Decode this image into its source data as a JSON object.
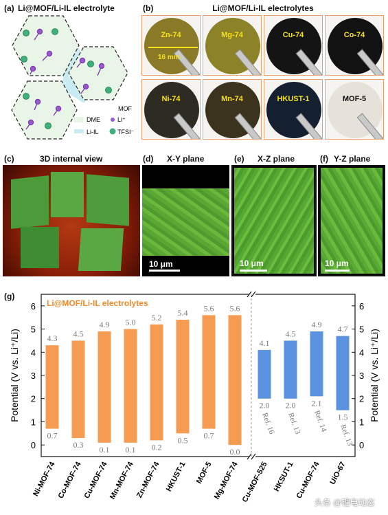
{
  "panel_a": {
    "label": "(a)",
    "title": "Li@MOF/Li-IL electrolyte",
    "legend": {
      "dme": "DME",
      "li": "Li⁺",
      "mof": "MOF",
      "li_il": "Li-IL",
      "tfsi": "TFSI⁻"
    }
  },
  "panel_b": {
    "label": "(b)",
    "title": "Li@MOF/Li-IL electrolytes",
    "size_label": "16 mm",
    "discs": [
      {
        "name": "Zn-74",
        "color": "#8a7a28"
      },
      {
        "name": "Mg-74",
        "color": "#8c8228"
      },
      {
        "name": "Cu-74",
        "color": "#141414"
      },
      {
        "name": "Co-74",
        "color": "#121212"
      },
      {
        "name": "Ni-74",
        "color": "#2e2b22"
      },
      {
        "name": "Mn-74",
        "color": "#3c331e"
      },
      {
        "name": "HKUST-1",
        "color": "#142030"
      },
      {
        "name": "MOF-5",
        "color": "#e6e2da"
      }
    ]
  },
  "panel_c": {
    "label": "(c)",
    "title": "3D internal view"
  },
  "panel_d": {
    "label": "(d)",
    "title": "X-Y plane",
    "scale": "10 μm"
  },
  "panel_e": {
    "label": "(e)",
    "title": "X-Z plane",
    "scale": "10 μm"
  },
  "panel_f": {
    "label": "(f)",
    "title": "Y-Z plane",
    "scale": "10 μm"
  },
  "panel_g": {
    "label": "(g)",
    "legend_text": "Li@MOF/Li-IL electrolytes"
  },
  "colors": {
    "orange": "#f59b52",
    "blue": "#5b93e0",
    "label_orange": "#f08a2a",
    "value_gray": "#7a7a7a"
  },
  "chart_data": {
    "type": "bar",
    "ylabel": "Potential (V vs. Li⁺/Li)",
    "ylim": [
      -0.5,
      6.5
    ],
    "yticks": [
      0,
      1,
      2,
      3,
      4,
      5,
      6
    ],
    "series": [
      {
        "name": "Li@MOF/Li-IL electrolytes",
        "color": "#f59b52",
        "categories": [
          "Ni-MOF-74",
          "Co-MOF-74",
          "Cu-MOF-74",
          "Mn-MOF-74",
          "Zn-MOF-74",
          "HKUST-1",
          "MOF-5",
          "Mg-MOF-74"
        ],
        "low": [
          0.7,
          0.3,
          0.1,
          0.1,
          0.2,
          0.5,
          0.7,
          0.0
        ],
        "high": [
          4.3,
          4.5,
          4.9,
          5.0,
          5.2,
          5.4,
          5.6,
          5.6
        ],
        "low_labels": [
          "0.7",
          "0.3",
          "0.1",
          "0.1",
          "0.2",
          "0.5",
          "0.7",
          "0.0"
        ],
        "high_labels": [
          "4.3",
          "4.5",
          "4.9",
          "5.0",
          "5.2",
          "5.4",
          "5.6",
          "5.6"
        ]
      },
      {
        "name": "",
        "color": "#5b93e0",
        "categories": [
          "Cu-MOF-525",
          "HKSUT-1",
          "Cu-MOF-74",
          "UiO-67"
        ],
        "low": [
          2.0,
          2.0,
          2.1,
          1.5
        ],
        "high": [
          4.1,
          4.5,
          4.9,
          4.7
        ],
        "low_labels": [
          "2.0",
          "2.0",
          "2.1",
          "1.5"
        ],
        "high_labels": [
          "4.1",
          "4.5",
          "4.9",
          "4.7"
        ],
        "refs": [
          "Ref. 16",
          "Ref. 13",
          "Ref. 14",
          "Ref. 13"
        ]
      }
    ]
  },
  "watermark": "头条 @锂电动态"
}
